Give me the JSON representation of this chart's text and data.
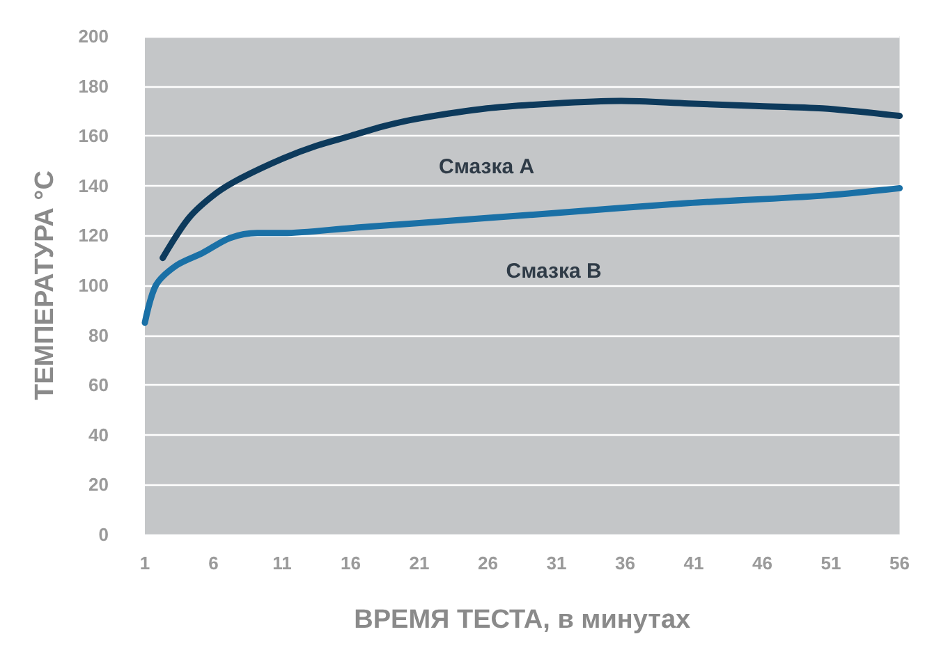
{
  "chart_data": {
    "type": "line",
    "xlabel": "ВРЕМЯ ТЕСТА, в минутах",
    "ylabel": "ТЕМПЕРАТУРА °C",
    "xlim": [
      1,
      56
    ],
    "xticks": [
      1,
      6,
      11,
      16,
      21,
      26,
      31,
      36,
      41,
      46,
      51,
      56
    ],
    "ylim": [
      0,
      200
    ],
    "yticks": [
      0,
      20,
      40,
      60,
      80,
      100,
      120,
      140,
      160,
      180,
      200
    ],
    "grid": "y",
    "marker": "none",
    "line_style": "solid",
    "series": [
      {
        "name": "Смазка А",
        "color": "#0d3a5c",
        "x": [
          2.3,
          4.2,
          6.2,
          8,
          11.1,
          13.5,
          16,
          18.5,
          21,
          25.9,
          30.8,
          35.7,
          40.6,
          45.5,
          50.4,
          56
        ],
        "values": [
          111,
          127,
          137,
          143,
          151,
          156,
          160,
          164,
          167,
          171,
          173,
          174,
          173,
          172,
          171,
          168
        ]
      },
      {
        "name": "Смазка В",
        "color": "#1a70a6",
        "x": [
          1,
          1.8,
          3.3,
          5.2,
          7.2,
          9.2,
          11.1,
          16,
          21,
          30.8,
          40.6,
          50.4,
          56
        ],
        "values": [
          85,
          100,
          108,
          113,
          119,
          121,
          121,
          123,
          125,
          129,
          133,
          136,
          139
        ]
      }
    ]
  }
}
